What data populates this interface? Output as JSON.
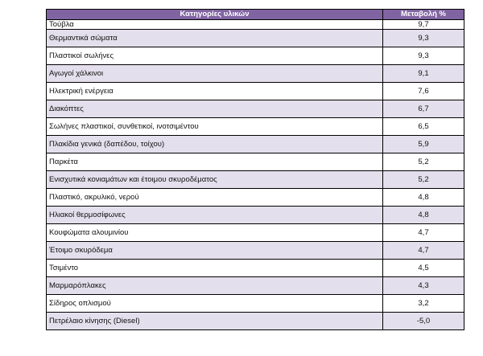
{
  "table": {
    "headers": [
      "Κατηγορίες υλικών",
      "Μεταβολή %"
    ],
    "rows": [
      {
        "category": "Τούβλα",
        "change": "9,7"
      },
      {
        "category": "Θερμαντικά σώματα",
        "change": "9,3"
      },
      {
        "category": "Πλαστικοί σωλήνες",
        "change": "9,3"
      },
      {
        "category": "Αγωγοί χάλκινοι",
        "change": "9,1"
      },
      {
        "category": "Ηλεκτρική ενέργεια",
        "change": "7,6"
      },
      {
        "category": "Διακόπτες",
        "change": "6,7"
      },
      {
        "category": "Σωλήνες πλαστικοί, συνθετικοί, ινοτσιμέντου",
        "change": "6,5"
      },
      {
        "category": "Πλακίδια γενικά (δαπέδου, τοίχου)",
        "change": "5,9"
      },
      {
        "category": "Παρκέτα",
        "change": "5,2"
      },
      {
        "category": "Ενισχυτικά κονιαμάτων και έτοιμου σκυροδέματος",
        "change": "5,2"
      },
      {
        "category": "Πλαστικό, ακρυλικό, νερού",
        "change": "4,8"
      },
      {
        "category": "Ηλιακοί θερμοσίφωνες",
        "change": "4,8"
      },
      {
        "category": "Κουφώματα αλουμινίου",
        "change": "4,7"
      },
      {
        "category": "Έτοιμο σκυρόδεμα",
        "change": "4,7"
      },
      {
        "category": "Τσιμέντο",
        "change": "4,5"
      },
      {
        "category": "Μαρμαρόπλακες",
        "change": "4,3"
      },
      {
        "category": "Σίδηρος οπλισμού",
        "change": "3,2"
      },
      {
        "category": "Πετρέλαιο κίνησης (Diesel)",
        "change": "-5,0"
      }
    ]
  }
}
